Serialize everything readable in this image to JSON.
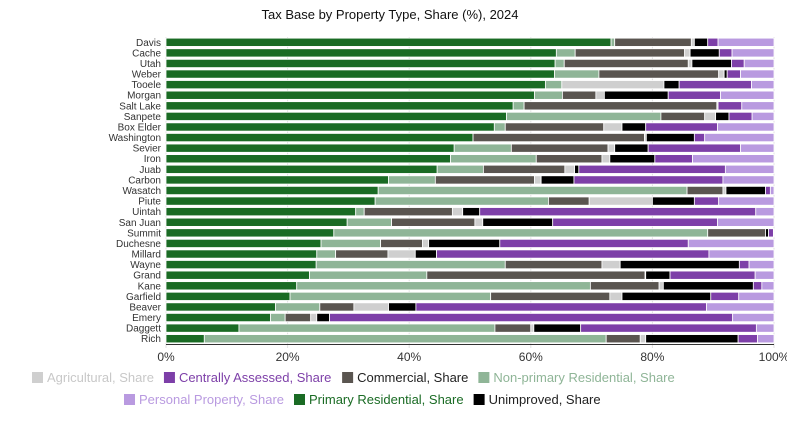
{
  "chart_data": {
    "type": "bar",
    "orientation": "horizontal",
    "stacked": true,
    "title": "Tax Base by Property Type, Share (%), 2024",
    "xlabel": "",
    "ylabel": "",
    "xlim": [
      0,
      100
    ],
    "x_ticks": [
      "0%",
      "20%",
      "40%",
      "60%",
      "80%",
      "100%"
    ],
    "x_tick_values": [
      0,
      20,
      40,
      60,
      80,
      100
    ],
    "grid": true,
    "legend_position": "bottom",
    "categories": [
      "Davis",
      "Cache",
      "Utah",
      "Weber",
      "Tooele",
      "Morgan",
      "Salt Lake",
      "Sanpete",
      "Box Elder",
      "Washington",
      "Sevier",
      "Iron",
      "Juab",
      "Carbon",
      "Wasatch",
      "Piute",
      "Uintah",
      "San Juan",
      "Summit",
      "Duchesne",
      "Millard",
      "Wayne",
      "Grand",
      "Kane",
      "Garfield",
      "Beaver",
      "Emery",
      "Daggett",
      "Rich"
    ],
    "series": [
      {
        "name": "Primary Residential, Share",
        "color": "#1a6b24",
        "values": [
          73.2,
          64.2,
          64.0,
          63.9,
          62.4,
          60.6,
          57.1,
          56.0,
          54.0,
          50.5,
          47.4,
          46.8,
          44.6,
          36.6,
          34.9,
          34.4,
          31.2,
          29.8,
          27.6,
          25.5,
          24.8,
          24.7,
          23.6,
          21.5,
          20.4,
          18.0,
          17.2,
          12.0,
          6.3
        ]
      },
      {
        "name": "Non-primary Residential, Share",
        "color": "#8fb597",
        "values": [
          0.6,
          3.1,
          1.5,
          7.3,
          2.7,
          4.6,
          1.8,
          25.4,
          1.8,
          0.0,
          9.4,
          14.1,
          7.6,
          7.7,
          50.8,
          28.5,
          1.4,
          7.3,
          61.5,
          9.8,
          3.1,
          31.1,
          19.3,
          48.3,
          33.0,
          7.3,
          2.4,
          42.1,
          66.1
        ]
      },
      {
        "name": "Commercial, Share",
        "color": "#5a5550",
        "values": [
          12.6,
          18.0,
          20.4,
          19.7,
          0.0,
          5.5,
          31.7,
          7.2,
          16.2,
          28.2,
          15.9,
          10.8,
          13.4,
          16.3,
          5.9,
          6.7,
          14.5,
          13.7,
          9.5,
          6.9,
          8.6,
          15.9,
          35.9,
          11.3,
          19.6,
          5.6,
          4.2,
          5.9,
          5.6
        ]
      },
      {
        "name": "Agricultural, Share",
        "color": "#cfcfcf",
        "values": [
          0.5,
          0.9,
          0.6,
          0.9,
          16.8,
          1.4,
          0.2,
          1.8,
          3.0,
          0.3,
          1.1,
          1.3,
          1.6,
          1.1,
          0.5,
          10.4,
          1.7,
          1.3,
          0.0,
          1.0,
          4.5,
          3.0,
          0.1,
          0.7,
          2.0,
          5.7,
          1.0,
          0.5,
          0.9
        ]
      },
      {
        "name": "Unimproved, Share",
        "color": "#000000",
        "values": [
          2.2,
          4.8,
          6.5,
          0.5,
          2.5,
          10.5,
          0.0,
          2.2,
          3.9,
          7.9,
          5.5,
          7.4,
          0.7,
          5.4,
          6.5,
          6.9,
          2.8,
          11.5,
          0.5,
          11.7,
          3.5,
          19.6,
          4.0,
          14.8,
          14.6,
          4.5,
          2.1,
          7.7,
          15.2
        ]
      },
      {
        "name": "Centrally Assessed, Share",
        "color": "#7d3fa8",
        "values": [
          1.7,
          2.1,
          2.1,
          2.2,
          11.9,
          8.6,
          3.9,
          3.8,
          11.8,
          1.7,
          15.2,
          6.2,
          24.1,
          24.5,
          0.8,
          4.0,
          45.4,
          27.1,
          0.8,
          31.0,
          44.8,
          1.6,
          14.0,
          1.4,
          4.6,
          47.8,
          66.3,
          28.9,
          3.2
        ]
      },
      {
        "name": "Personal Property, Share",
        "color": "#b99ae0",
        "values": [
          9.2,
          6.9,
          4.9,
          5.5,
          3.7,
          8.8,
          5.3,
          3.6,
          9.3,
          11.4,
          5.5,
          13.4,
          8.0,
          8.4,
          0.6,
          9.1,
          3.0,
          9.3,
          0.1,
          14.1,
          10.7,
          4.1,
          3.1,
          2.0,
          5.8,
          11.1,
          6.8,
          2.9,
          2.7
        ]
      }
    ]
  },
  "legend_order": [
    "Agricultural, Share",
    "Centrally Assessed, Share",
    "Commercial, Share",
    "Non-primary Residential, Share",
    "Personal Property, Share",
    "Primary Residential, Share",
    "Unimproved, Share"
  ]
}
